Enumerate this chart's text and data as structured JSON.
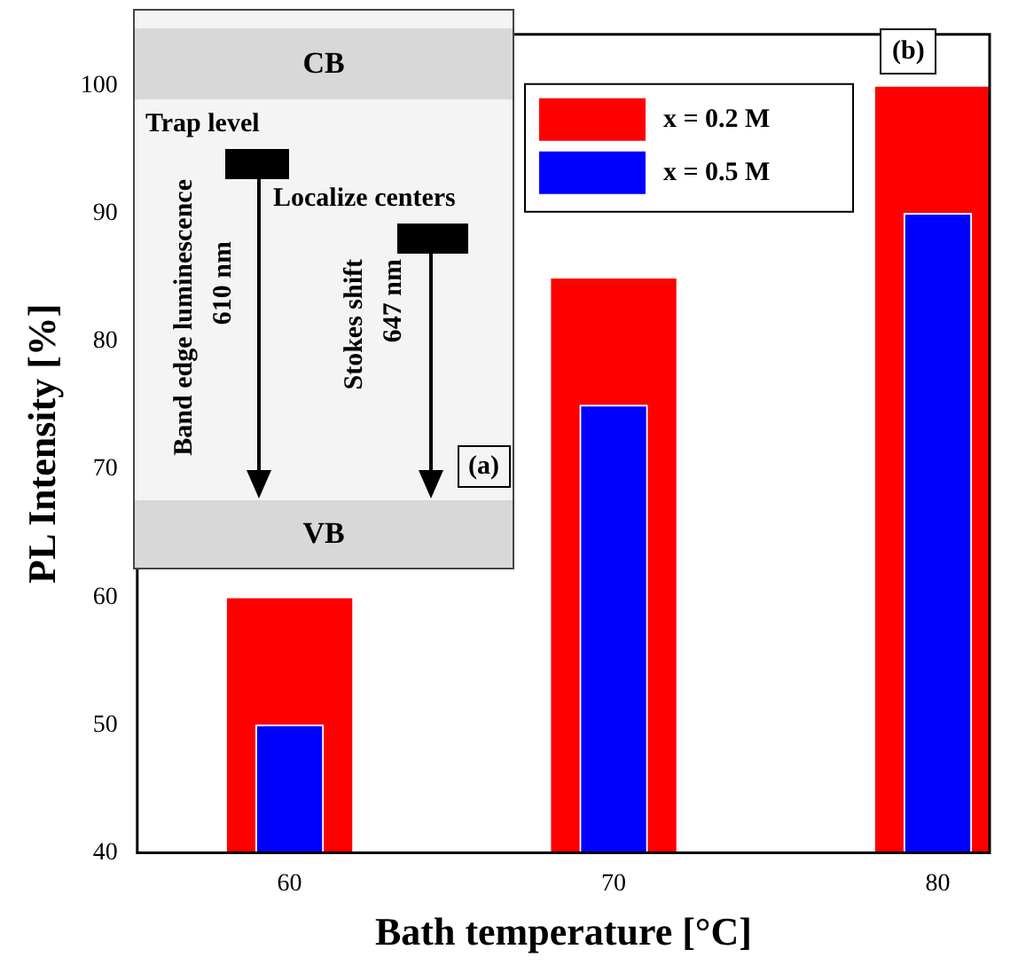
{
  "chart_data": {
    "type": "bar",
    "xlabel": "Bath temperature [°C]",
    "ylabel": "PL Intensity [%]",
    "x": [
      60,
      70,
      80
    ],
    "series": [
      {
        "name": "x = 0.2 M",
        "color": "#ff0000",
        "values": [
          60,
          85,
          100
        ]
      },
      {
        "name": "x = 0.5 M",
        "color": "#0000ff",
        "values": [
          50,
          75,
          90
        ]
      }
    ],
    "xlim": [
      55.3,
      81.6
    ],
    "xticks": [
      60,
      70,
      80
    ],
    "ylim": [
      40,
      104
    ],
    "yticks": [
      40,
      50,
      60,
      70,
      80,
      90,
      100
    ],
    "grid": false,
    "legend": "top right",
    "annotations": [
      "(a)",
      "(b)",
      "CB",
      "VB",
      "Trap level",
      "Localize centers",
      "Band edge luminescence",
      "610 nm",
      "Stokes shift",
      "647 nm"
    ]
  }
}
